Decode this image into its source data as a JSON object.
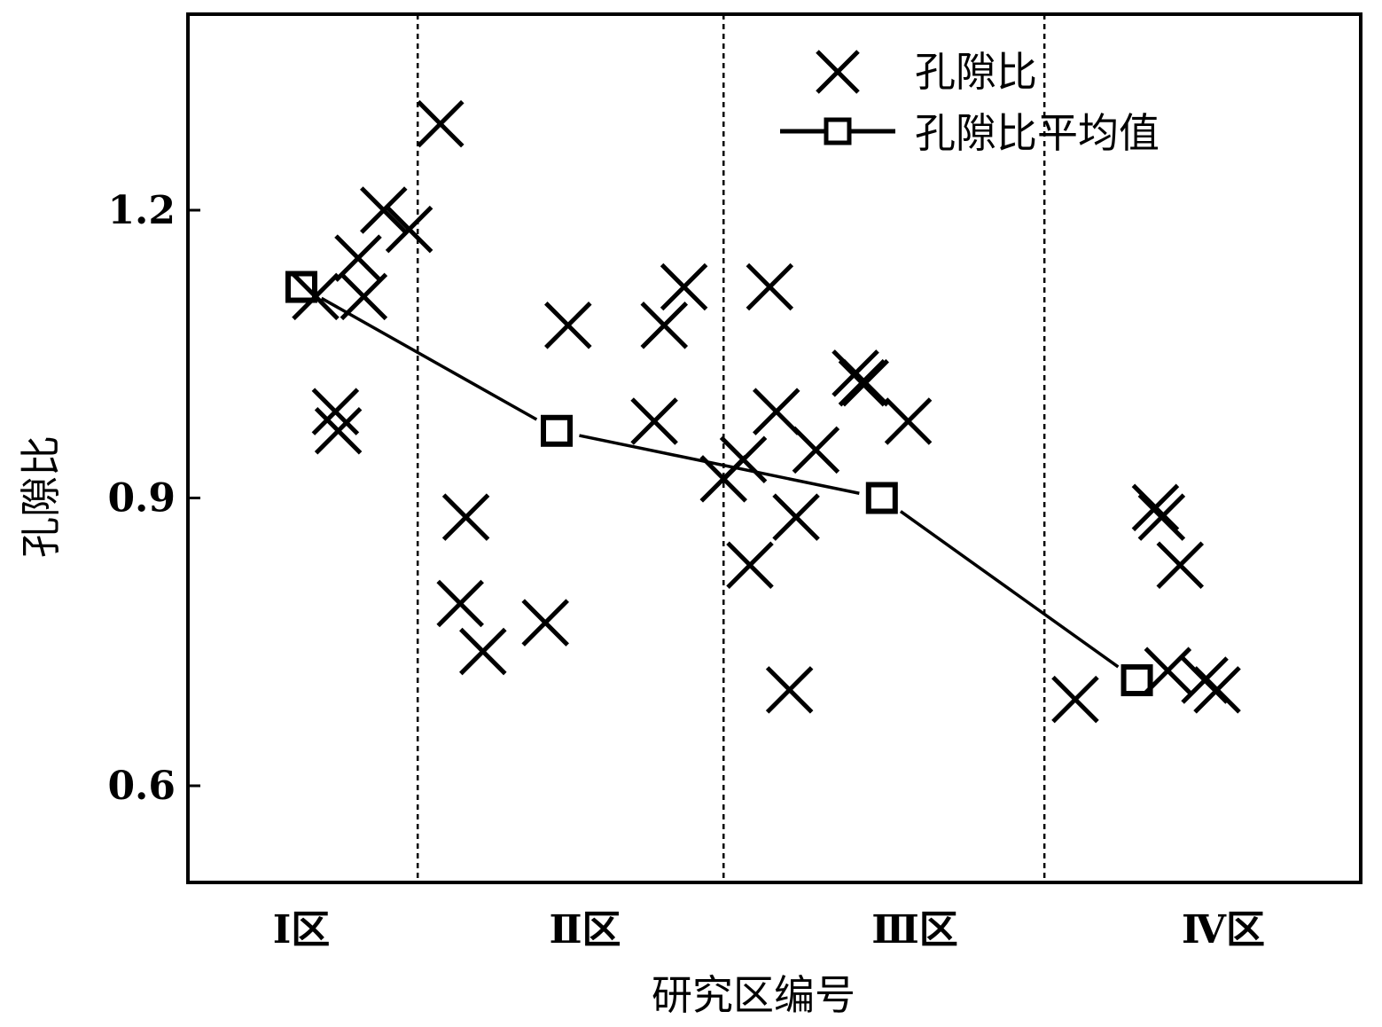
{
  "chart_data": {
    "type": "scatter",
    "xlabel": "研究区编号",
    "ylabel": "孔隙比",
    "categories": [
      "Ⅰ区",
      "Ⅱ区",
      "Ⅲ区",
      "Ⅳ区"
    ],
    "ylim": [
      0.5,
      1.3
    ],
    "yticks": [
      "0.6",
      "0.9",
      "1.2"
    ],
    "grid": false,
    "legend_position": "top-right",
    "series": [
      {
        "name": "孔隙比",
        "marker": "x",
        "points": [
          {
            "x": 0.05,
            "y": 1.11
          },
          {
            "x": 0.12,
            "y": 0.99
          },
          {
            "x": 0.13,
            "y": 0.97
          },
          {
            "x": 0.2,
            "y": 1.15
          },
          {
            "x": 0.22,
            "y": 1.11
          },
          {
            "x": 0.29,
            "y": 1.2
          },
          {
            "x": 0.38,
            "y": 1.18
          },
          {
            "x": 0.49,
            "y": 1.29
          },
          {
            "x": 0.58,
            "y": 0.88
          },
          {
            "x": 0.56,
            "y": 0.79
          },
          {
            "x": 0.64,
            "y": 0.74
          },
          {
            "x": 0.86,
            "y": 0.77
          },
          {
            "x": 0.94,
            "y": 1.08
          },
          {
            "x": 1.21,
            "y": 0.98
          },
          {
            "x": 1.24,
            "y": 1.08
          },
          {
            "x": 1.3,
            "y": 1.12
          },
          {
            "x": 1.42,
            "y": 0.92
          },
          {
            "x": 1.48,
            "y": 0.94
          },
          {
            "x": 1.5,
            "y": 0.83
          },
          {
            "x": 1.56,
            "y": 1.12
          },
          {
            "x": 1.58,
            "y": 0.99
          },
          {
            "x": 1.62,
            "y": 0.7
          },
          {
            "x": 1.64,
            "y": 0.88
          },
          {
            "x": 1.7,
            "y": 0.95
          },
          {
            "x": 1.82,
            "y": 1.03
          },
          {
            "x": 1.84,
            "y": 1.02
          },
          {
            "x": 1.85,
            "y": 1.02
          },
          {
            "x": 1.98,
            "y": 0.98
          },
          {
            "x": 2.52,
            "y": 0.69
          },
          {
            "x": 2.78,
            "y": 0.89
          },
          {
            "x": 2.8,
            "y": 0.88
          },
          {
            "x": 2.82,
            "y": 0.72
          },
          {
            "x": 2.86,
            "y": 0.83
          },
          {
            "x": 2.94,
            "y": 0.71
          },
          {
            "x": 2.98,
            "y": 0.7
          }
        ]
      },
      {
        "name": "孔隙比平均值",
        "marker": "square",
        "line": true,
        "points": [
          {
            "x": 0.0,
            "y": 1.12
          },
          {
            "x": 0.9,
            "y": 0.97
          },
          {
            "x": 1.9,
            "y": 0.9
          },
          {
            "x": 2.72,
            "y": 0.71
          }
        ]
      }
    ],
    "dividers_x": [
      0.41,
      1.42,
      2.42
    ]
  }
}
